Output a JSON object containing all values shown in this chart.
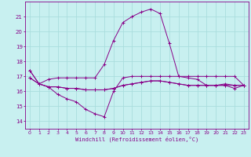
{
  "title": "",
  "xlabel": "Windchill (Refroidissement éolien,°C)",
  "bg_color": "#c8f0f0",
  "grid_color": "#aadddd",
  "line_color": "#880088",
  "xlim": [
    -0.5,
    23.5
  ],
  "ylim": [
    13.5,
    22.0
  ],
  "yticks": [
    14,
    15,
    16,
    17,
    18,
    19,
    20,
    21
  ],
  "xticks": [
    0,
    1,
    2,
    3,
    4,
    5,
    6,
    7,
    8,
    9,
    10,
    11,
    12,
    13,
    14,
    15,
    16,
    17,
    18,
    19,
    20,
    21,
    22,
    23
  ],
  "series": [
    {
      "x": [
        0,
        1,
        2,
        3,
        4,
        5,
        6,
        7,
        8,
        9,
        10,
        11,
        12,
        13,
        14,
        15,
        16,
        17,
        18,
        19,
        20,
        21,
        22,
        23
      ],
      "y": [
        17.4,
        16.5,
        16.8,
        16.9,
        16.9,
        16.9,
        16.9,
        16.9,
        17.8,
        19.4,
        20.6,
        21.0,
        21.3,
        21.5,
        21.2,
        19.2,
        17.0,
        16.9,
        16.8,
        16.4,
        16.4,
        16.5,
        16.4,
        16.4
      ]
    },
    {
      "x": [
        0,
        1,
        2,
        3,
        4,
        5,
        6,
        7,
        8,
        9,
        10,
        11,
        12,
        13,
        14,
        15,
        16,
        17,
        18,
        19,
        20,
        21,
        22,
        23
      ],
      "y": [
        17.4,
        16.5,
        16.3,
        15.8,
        15.5,
        15.3,
        14.8,
        14.5,
        14.3,
        16.0,
        16.9,
        17.0,
        17.0,
        17.0,
        17.0,
        17.0,
        17.0,
        17.0,
        17.0,
        17.0,
        17.0,
        17.0,
        17.0,
        16.4
      ]
    },
    {
      "x": [
        0,
        1,
        2,
        3,
        4,
        5,
        6,
        7,
        8,
        9,
        10,
        11,
        12,
        13,
        14,
        15,
        16,
        17,
        18,
        19,
        20,
        21,
        22,
        23
      ],
      "y": [
        16.9,
        16.5,
        16.3,
        16.3,
        16.2,
        16.2,
        16.1,
        16.1,
        16.1,
        16.2,
        16.4,
        16.5,
        16.6,
        16.7,
        16.7,
        16.6,
        16.5,
        16.4,
        16.4,
        16.4,
        16.4,
        16.4,
        16.4,
        16.4
      ]
    },
    {
      "x": [
        0,
        1,
        2,
        3,
        4,
        5,
        6,
        7,
        8,
        9,
        10,
        11,
        12,
        13,
        14,
        15,
        16,
        17,
        18,
        19,
        20,
        21,
        22,
        23
      ],
      "y": [
        16.9,
        16.5,
        16.3,
        16.3,
        16.2,
        16.2,
        16.1,
        16.1,
        16.1,
        16.2,
        16.4,
        16.5,
        16.6,
        16.7,
        16.7,
        16.6,
        16.5,
        16.4,
        16.4,
        16.4,
        16.4,
        16.4,
        16.2,
        16.4
      ]
    }
  ]
}
